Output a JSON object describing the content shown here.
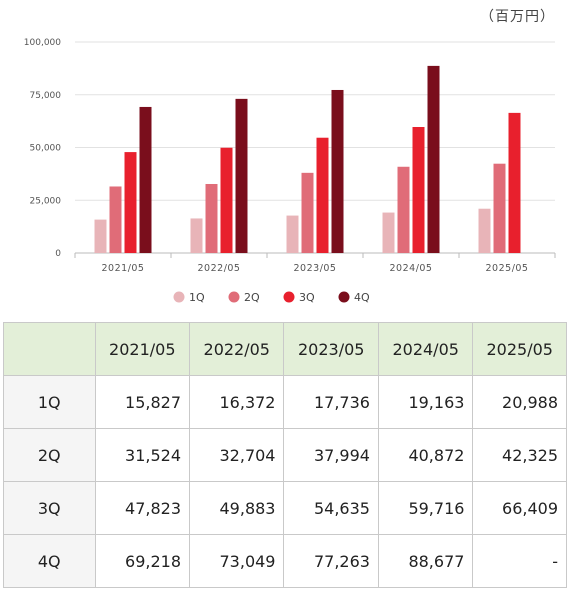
{
  "unit_label": "（百万円）",
  "chart_data": {
    "type": "bar",
    "categories": [
      "2021/05",
      "2022/05",
      "2023/05",
      "2024/05",
      "2025/05"
    ],
    "series": [
      {
        "name": "1Q",
        "color": "#e8b4b8",
        "values": [
          15827,
          16372,
          17736,
          19163,
          20988
        ]
      },
      {
        "name": "2Q",
        "color": "#e06c78",
        "values": [
          31524,
          32704,
          37994,
          40872,
          42325
        ]
      },
      {
        "name": "3Q",
        "color": "#e8202d",
        "values": [
          47823,
          49883,
          54635,
          59716,
          66409
        ]
      },
      {
        "name": "4Q",
        "color": "#7a0e1c",
        "values": [
          69218,
          73049,
          77263,
          88677,
          null
        ]
      }
    ],
    "y_ticks": [
      "0",
      "25,000",
      "50,000",
      "75,000",
      "100,000"
    ],
    "ylim": [
      0,
      100000
    ],
    "grid": true,
    "legend": "bottom"
  },
  "table": {
    "headers": [
      "",
      "2021/05",
      "2022/05",
      "2023/05",
      "2024/05",
      "2025/05"
    ],
    "rows": [
      {
        "label": "1Q",
        "cells": [
          "15,827",
          "16,372",
          "17,736",
          "19,163",
          "20,988"
        ]
      },
      {
        "label": "2Q",
        "cells": [
          "31,524",
          "32,704",
          "37,994",
          "40,872",
          "42,325"
        ]
      },
      {
        "label": "3Q",
        "cells": [
          "47,823",
          "49,883",
          "54,635",
          "59,716",
          "66,409"
        ]
      },
      {
        "label": "4Q",
        "cells": [
          "69,218",
          "73,049",
          "77,263",
          "88,677",
          "-"
        ]
      }
    ]
  }
}
